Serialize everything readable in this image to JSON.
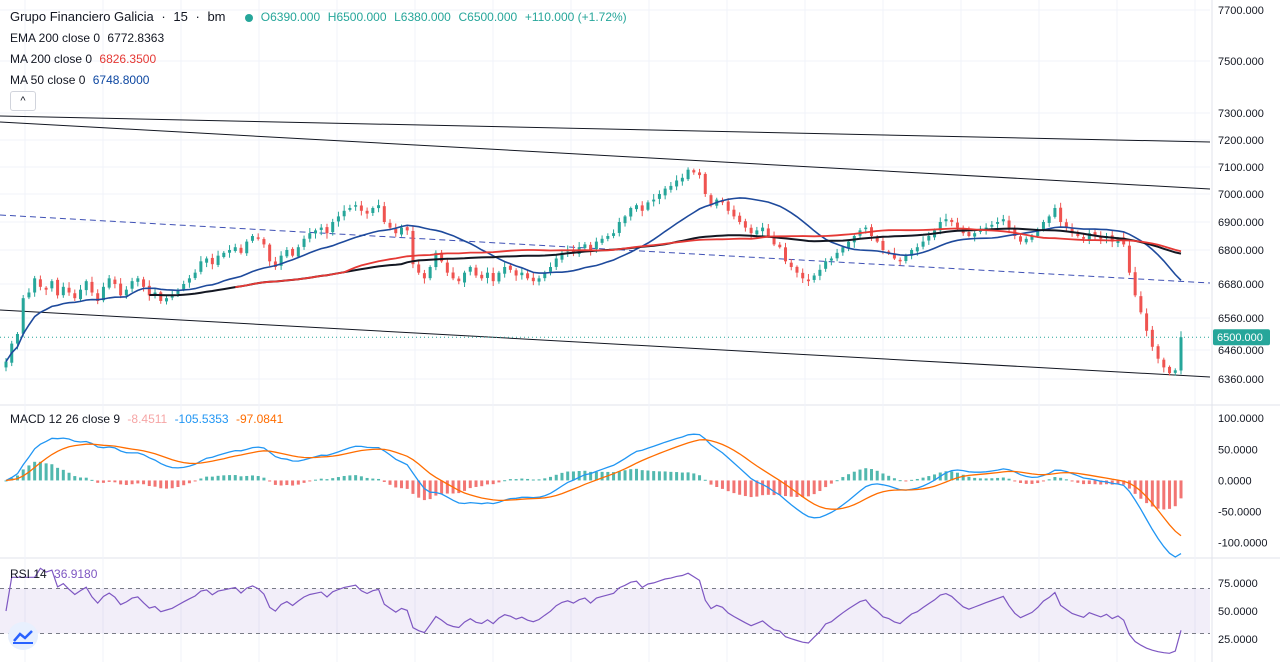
{
  "header": {
    "symbol": "Grupo Financiero Galicia",
    "interval": "15",
    "exchange": "bm",
    "open": "O6390.000",
    "high": "H6500.000",
    "low": "L6380.000",
    "close": "C6500.000",
    "change": "+110.000 (+1.72%)"
  },
  "indicators": {
    "ema200": {
      "label": "EMA 200 close 0",
      "value": "6772.8363",
      "color": "#1e3f8a"
    },
    "ma200": {
      "label": "MA 200 close 0",
      "value": "6826.3500",
      "color": "#e53935"
    },
    "ma50": {
      "label": "MA 50 close 0",
      "value": "6748.8000",
      "color": "#0d47a1"
    },
    "macd": {
      "label": "MACD 12 26 close 9",
      "hist": "-8.4511",
      "macd": "-105.5353",
      "signal": "-97.0841"
    },
    "rsi": {
      "label": "RSI 14",
      "value": "36.9180"
    }
  },
  "colors": {
    "up": "#26a69a",
    "down": "#ef5350",
    "grid": "#f0f3fa",
    "axis": "#131722",
    "rsi": "#7e57c2"
  },
  "price_axis": {
    "ticks": [
      {
        "value": 7700,
        "label": "7700.000"
      },
      {
        "value": 7500,
        "label": "7500.000"
      },
      {
        "value": 7300,
        "label": "7300.000"
      },
      {
        "value": 7200,
        "label": "7200.000"
      },
      {
        "value": 7100,
        "label": "7100.000"
      },
      {
        "value": 7000,
        "label": "7000.000"
      },
      {
        "value": 6900,
        "label": "6900.000"
      },
      {
        "value": 6800,
        "label": "6800.000"
      },
      {
        "value": 6680,
        "label": "6680.000"
      },
      {
        "value": 6560,
        "label": "6560.000"
      },
      {
        "value": 6460,
        "label": "6460.000"
      },
      {
        "value": 6360,
        "label": "6360.000"
      }
    ],
    "current": {
      "value": 6500,
      "label": "6500.000"
    }
  },
  "macd_axis": {
    "ticks": [
      {
        "value": 100,
        "label": "100.0000"
      },
      {
        "value": 50,
        "label": "50.0000"
      },
      {
        "value": 0,
        "label": "0.0000"
      },
      {
        "value": -50,
        "label": "-50.0000"
      },
      {
        "value": -100,
        "label": "-100.0000"
      }
    ]
  },
  "rsi_axis": {
    "ticks": [
      {
        "value": 75,
        "label": "75.0000"
      },
      {
        "value": 50,
        "label": "50.0000"
      },
      {
        "value": 25,
        "label": "25.0000"
      }
    ],
    "band": [
      30,
      70
    ]
  },
  "chart_data": {
    "type": "candlestick",
    "title": "Grupo Financiero Galicia · 15 · bm",
    "ylim": [
      6330,
      7720
    ],
    "closes": [
      6420,
      6480,
      6510,
      6630,
      6650,
      6700,
      6670,
      6660,
      6690,
      6640,
      6670,
      6650,
      6630,
      6660,
      6690,
      6650,
      6620,
      6670,
      6700,
      6680,
      6640,
      6660,
      6690,
      6700,
      6670,
      6640,
      6650,
      6620,
      6630,
      6640,
      6660,
      6680,
      6700,
      6720,
      6760,
      6770,
      6750,
      6780,
      6790,
      6800,
      6810,
      6790,
      6830,
      6850,
      6840,
      6820,
      6760,
      6740,
      6780,
      6800,
      6780,
      6810,
      6840,
      6860,
      6870,
      6880,
      6860,
      6900,
      6920,
      6940,
      6950,
      6960,
      6940,
      6930,
      6950,
      6960,
      6900,
      6880,
      6860,
      6880,
      6870,
      6750,
      6720,
      6700,
      6740,
      6790,
      6760,
      6720,
      6700,
      6690,
      6720,
      6740,
      6710,
      6700,
      6720,
      6690,
      6720,
      6740,
      6730,
      6710,
      6720,
      6700,
      6690,
      6700,
      6720,
      6740,
      6770,
      6790,
      6800,
      6790,
      6810,
      6820,
      6800,
      6830,
      6840,
      6850,
      6860,
      6900,
      6920,
      6950,
      6960,
      6940,
      6970,
      6980,
      7000,
      7020,
      7030,
      7050,
      7060,
      7090,
      7080,
      7070,
      7000,
      6960,
      6980,
      6970,
      6940,
      6920,
      6900,
      6880,
      6860,
      6870,
      6880,
      6850,
      6820,
      6810,
      6760,
      6740,
      6720,
      6700,
      6690,
      6710,
      6730,
      6760,
      6770,
      6790,
      6810,
      6830,
      6850,
      6870,
      6880,
      6850,
      6830,
      6800,
      6790,
      6770,
      6760,
      6780,
      6800,
      6810,
      6830,
      6850,
      6870,
      6900,
      6910,
      6900,
      6880,
      6860,
      6850,
      6860,
      6870,
      6880,
      6890,
      6900,
      6910,
      6880,
      6850,
      6830,
      6840,
      6850,
      6870,
      6900,
      6920,
      6950,
      6900,
      6880,
      6860,
      6850,
      6840,
      6860,
      6850,
      6840,
      6850,
      6830,
      6840,
      6820,
      6720,
      6640,
      6580,
      6520,
      6470,
      6430,
      6400,
      6380,
      6390,
      6500
    ]
  }
}
